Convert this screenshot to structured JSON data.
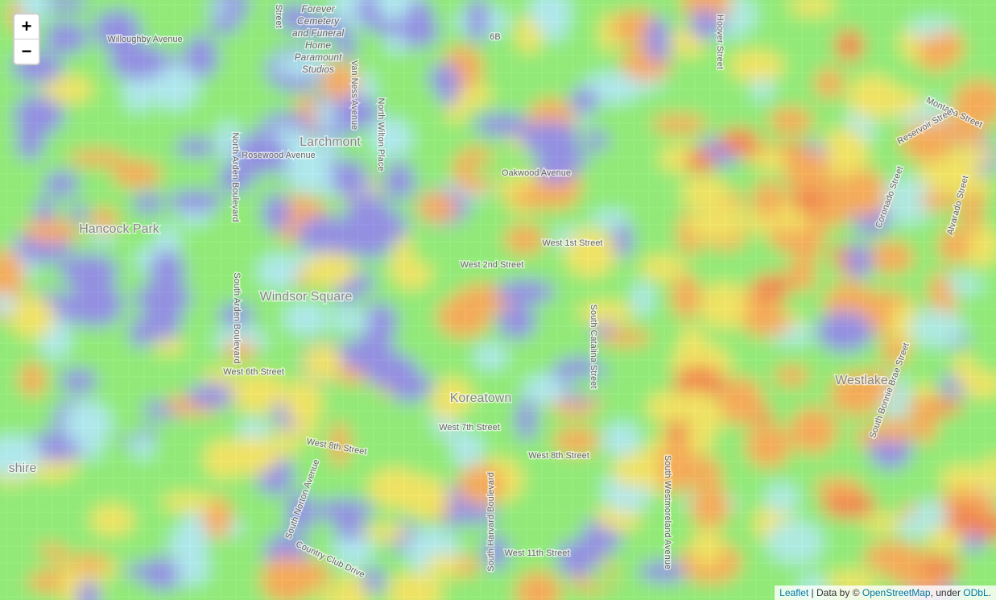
{
  "controls": {
    "zoom_in": "+",
    "zoom_out": "−"
  },
  "labels": [
    "Willoughby Avenue",
    "Forever",
    "Cemetery",
    "and Funeral",
    "Home",
    "Paramount",
    "Studios",
    "Van Ness Avenue",
    "North Wilton Place",
    "Larchmont",
    "Rosewood Avenue",
    "North Arden Boulevard",
    "Hancock Park",
    "Oakwood Avenue",
    "West 1st Street",
    "West 2nd Street",
    "Windsor Square",
    "South Arden Boulevard",
    "West 6th Street",
    "Koreatown",
    "West 7th Street",
    "South Catalina Street",
    "West 8th Street",
    "West 8th Street",
    "South Norton Avenue",
    "South Harvard Boulevard",
    "South Westmoreland Avenue",
    "West 11th Street",
    "Country Club Drive",
    "Westlake",
    "South Bonnie Brae Street",
    "Montana Street",
    "Reservoir Street",
    "Hoover Street",
    "Coronado Street",
    "Alvarado Street",
    "shire",
    "Street",
    "6B"
  ],
  "attribution": {
    "leaflet": "Leaflet",
    "data_by": "| Data by ©",
    "osm": "OpenStreetMap",
    "under": ", under",
    "odbl": "ODbL",
    "end": "."
  }
}
